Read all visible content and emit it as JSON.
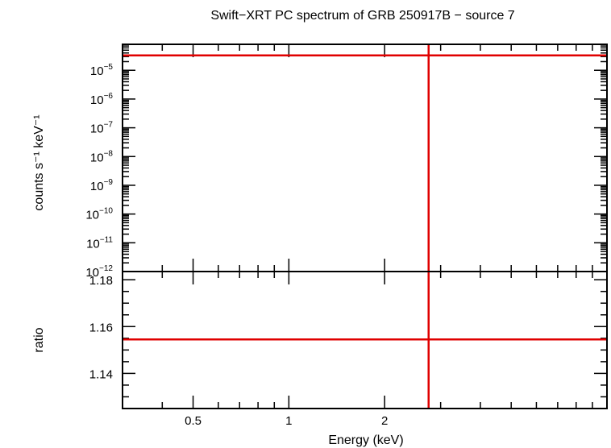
{
  "chart_data": [
    {
      "type": "line",
      "panel": "spectrum",
      "title": "Swift−XRT PC spectrum of GRB 250917B − source 7",
      "ylabel": "counts s⁻¹ keV⁻¹",
      "xlabel": "",
      "x_scale": "log",
      "y_scale": "log",
      "xlim": [
        0.3,
        10
      ],
      "ylim": [
        1e-12,
        8e-05
      ],
      "x_ticks": [
        {
          "value": 0.5,
          "label": ""
        },
        {
          "value": 1,
          "label": ""
        },
        {
          "value": 2,
          "label": ""
        }
      ],
      "y_ticks": [
        {
          "value": 1e-12,
          "base": "10",
          "exp": "−12"
        },
        {
          "value": 1e-11,
          "base": "10",
          "exp": "−11"
        },
        {
          "value": 1e-10,
          "base": "10",
          "exp": "−10"
        },
        {
          "value": 1e-09,
          "base": "10",
          "exp": "−9"
        },
        {
          "value": 1e-08,
          "base": "10",
          "exp": "−8"
        },
        {
          "value": 1e-07,
          "base": "10",
          "exp": "−7"
        },
        {
          "value": 1e-06,
          "base": "10",
          "exp": "−6"
        },
        {
          "value": 1e-05,
          "base": "10",
          "exp": "−5"
        }
      ],
      "series": [
        {
          "type": "hline",
          "y": 3.3e-05,
          "color": "#e00000"
        },
        {
          "type": "vline",
          "x": 2.75,
          "color": "#e00000"
        }
      ],
      "grid": false
    },
    {
      "type": "line",
      "panel": "ratio",
      "ylabel": "ratio",
      "xlabel": "Energy (keV)",
      "x_scale": "log",
      "y_scale": "linear",
      "xlim": [
        0.3,
        10
      ],
      "ylim": [
        1.125,
        1.1835
      ],
      "x_ticks": [
        {
          "value": 0.5,
          "label": "0.5"
        },
        {
          "value": 1,
          "label": "1"
        },
        {
          "value": 2,
          "label": "2"
        }
      ],
      "y_ticks": [
        {
          "value": 1.14,
          "label": "1.14"
        },
        {
          "value": 1.16,
          "label": "1.16"
        },
        {
          "value": 1.18,
          "label": "1.18"
        }
      ],
      "series": [
        {
          "type": "hline",
          "y": 1.1545,
          "color": "#e00000"
        },
        {
          "type": "vline",
          "x": 2.75,
          "color": "#e00000"
        }
      ],
      "grid": false
    }
  ]
}
